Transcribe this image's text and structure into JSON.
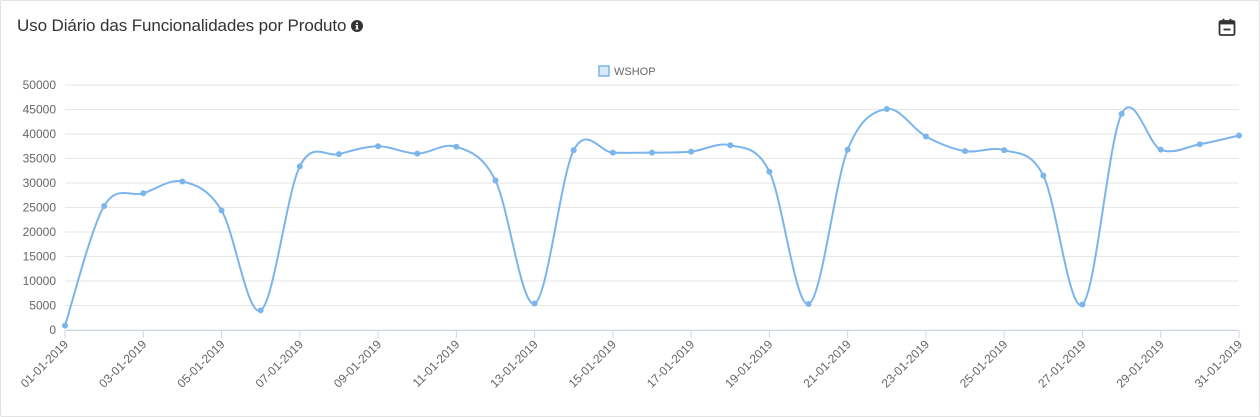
{
  "header": {
    "title": "Uso Diário das Funcionalidades por Produto",
    "info_icon": "info-circle-icon",
    "calendar_icon": "calendar-minus-icon"
  },
  "chart_data": {
    "type": "line",
    "title": "",
    "xlabel": "",
    "ylabel": "",
    "ylim": [
      0,
      50000
    ],
    "yticks": [
      0,
      5000,
      10000,
      15000,
      20000,
      25000,
      30000,
      35000,
      40000,
      45000,
      50000
    ],
    "xtick_labels": [
      "01-01-2019",
      "03-01-2019",
      "05-01-2019",
      "07-01-2019",
      "09-01-2019",
      "11-01-2019",
      "13-01-2019",
      "15-01-2019",
      "17-01-2019",
      "19-01-2019",
      "21-01-2019",
      "23-01-2019",
      "25-01-2019",
      "27-01-2019",
      "29-01-2019",
      "31-01-2019"
    ],
    "grid": true,
    "legend_position": "top-center",
    "line_color": "#7cb5ec",
    "categories": [
      "01-01-2019",
      "02-01-2019",
      "03-01-2019",
      "04-01-2019",
      "05-01-2019",
      "06-01-2019",
      "07-01-2019",
      "08-01-2019",
      "09-01-2019",
      "10-01-2019",
      "11-01-2019",
      "12-01-2019",
      "13-01-2019",
      "14-01-2019",
      "15-01-2019",
      "16-01-2019",
      "17-01-2019",
      "18-01-2019",
      "19-01-2019",
      "20-01-2019",
      "21-01-2019",
      "22-01-2019",
      "23-01-2019",
      "24-01-2019",
      "25-01-2019",
      "26-01-2019",
      "27-01-2019",
      "28-01-2019",
      "29-01-2019",
      "30-01-2019",
      "31-01-2019"
    ],
    "series": [
      {
        "name": "WSHOP",
        "values": [
          900,
          25300,
          27900,
          30300,
          24400,
          4000,
          33400,
          35900,
          37500,
          36000,
          37400,
          30500,
          5400,
          36700,
          36200,
          36200,
          36400,
          37700,
          32300,
          5300,
          36800,
          45100,
          39500,
          36500,
          36700,
          31500,
          5200,
          44100,
          36800,
          37900,
          39700
        ]
      }
    ]
  }
}
